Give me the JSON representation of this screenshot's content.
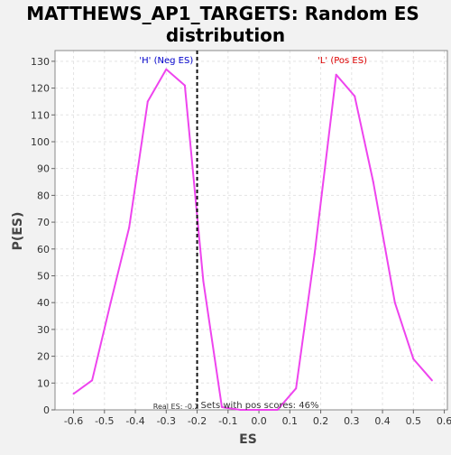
{
  "chart_data": {
    "type": "line",
    "title_line1": "MATTHEWS_AP1_TARGETS: Random ES",
    "title_line2": "distribution",
    "xlabel": "ES",
    "ylabel": "P(ES)",
    "xlim": [
      -0.66,
      0.61
    ],
    "ylim": [
      0,
      134
    ],
    "x_ticks": [
      -0.6,
      -0.5,
      -0.4,
      -0.3,
      -0.2,
      -0.1,
      0.0,
      0.1,
      0.2,
      0.3,
      0.4,
      0.5,
      0.6
    ],
    "x_tick_labels": [
      "-0.6",
      "-0.5",
      "-0.4",
      "-0.3",
      "-0.2",
      "-0.1",
      "0.0",
      "0.1",
      "0.2",
      "0.3",
      "0.4",
      "0.5",
      "0.6"
    ],
    "y_ticks": [
      0,
      10,
      20,
      30,
      40,
      50,
      60,
      70,
      80,
      90,
      100,
      110,
      120,
      130
    ],
    "grid": true,
    "series": [
      {
        "color": "#ee44ee",
        "x": [
          -0.6,
          -0.54,
          -0.48,
          -0.42,
          -0.36,
          -0.3,
          -0.24,
          -0.18,
          -0.12,
          -0.06,
          0.0,
          0.06,
          0.12,
          0.18,
          0.25,
          0.31,
          0.37,
          0.44,
          0.5,
          0.56
        ],
        "y": [
          6,
          11,
          40,
          68,
          115,
          127,
          121,
          48,
          1,
          0,
          0,
          0,
          8,
          58,
          125,
          117,
          85,
          40,
          19,
          11
        ]
      }
    ],
    "real_es": {
      "x": -0.2,
      "label": "Real ES: -0.2"
    },
    "annotations": {
      "neg_label": "'H' (Neg ES)",
      "pos_label": "'L' (Pos ES)",
      "sets_pos_scores": "Sets with pos scores: 46%"
    },
    "colors": {
      "neg_label": "#0000cc",
      "pos_label": "#dd0000",
      "series": "#ee44ee",
      "real_es_line": "#111111"
    }
  }
}
